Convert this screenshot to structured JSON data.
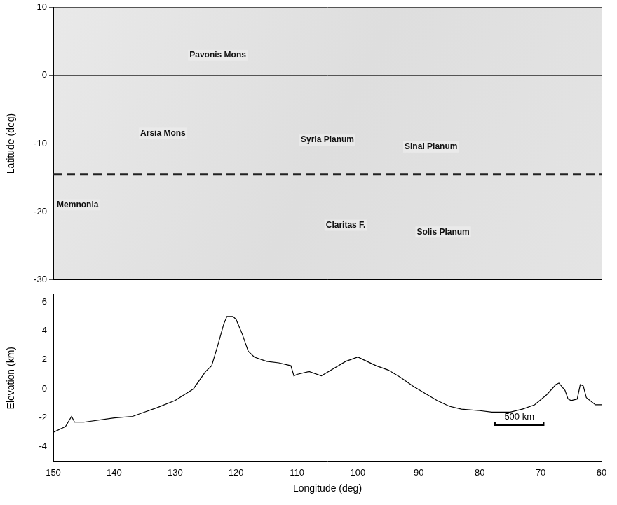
{
  "chart_data": [
    {
      "type": "map",
      "ylabel": "Latitude (deg)",
      "xlim": [
        150,
        60
      ],
      "ylim": [
        -30,
        10
      ],
      "xticks": [
        150,
        140,
        130,
        120,
        110,
        100,
        90,
        80,
        70,
        60
      ],
      "yticks": [
        -30,
        -20,
        -10,
        0,
        10
      ],
      "grid": true,
      "tick_labels": "y",
      "annotations": [
        {
          "text": "Pavonis Mons",
          "x": 123,
          "y": 3
        },
        {
          "text": "Arsia Mons",
          "x": 132,
          "y": -8.5
        },
        {
          "text": "Syria Planum",
          "x": 105,
          "y": -9.5
        },
        {
          "text": "Sinai Planum",
          "x": 88,
          "y": -10.5
        },
        {
          "text": "Memnonia",
          "x": 146,
          "y": -19
        },
        {
          "text": "Claritas F.",
          "x": 102,
          "y": -22
        },
        {
          "text": "Solis Planum",
          "x": 86,
          "y": -23
        }
      ],
      "profile_line": {
        "y": -14.5,
        "line_style": "dashed",
        "color": "#222222"
      }
    },
    {
      "type": "line",
      "xlabel": "Longitude (deg)",
      "ylabel": "Elevation (km)",
      "color": "#000000",
      "x": [
        150,
        148,
        147,
        146.5,
        145,
        140,
        137,
        135,
        133,
        130,
        127,
        125,
        124,
        123,
        122,
        121.5,
        120.5,
        120,
        119,
        118,
        117,
        115,
        113,
        111,
        110.5,
        110,
        108,
        106,
        104,
        102,
        100,
        99,
        97,
        95,
        93,
        91,
        89,
        87,
        85,
        83,
        80,
        78,
        75,
        73,
        71,
        69,
        67.5,
        67,
        66,
        65.5,
        65,
        64,
        63.5,
        63,
        62.5,
        61,
        60
      ],
      "values": [
        -3.0,
        -2.6,
        -1.9,
        -2.3,
        -2.3,
        -2.0,
        -1.9,
        -1.6,
        -1.3,
        -0.8,
        0.0,
        1.2,
        1.6,
        3.0,
        4.5,
        5.0,
        5.0,
        4.8,
        3.8,
        2.6,
        2.2,
        1.9,
        1.8,
        1.6,
        0.9,
        1.0,
        1.2,
        0.9,
        1.4,
        1.9,
        2.2,
        2.0,
        1.6,
        1.3,
        0.8,
        0.2,
        -0.3,
        -0.8,
        -1.2,
        -1.4,
        -1.5,
        -1.6,
        -1.6,
        -1.4,
        -1.1,
        -0.4,
        0.3,
        0.4,
        -0.1,
        -0.7,
        -0.8,
        -0.7,
        0.3,
        0.2,
        -0.6,
        -1.1,
        -1.1
      ],
      "xlim": [
        150,
        60
      ],
      "ylim": [
        -5,
        6.5
      ],
      "xticks": [
        150,
        140,
        130,
        120,
        110,
        100,
        90,
        80,
        70,
        60
      ],
      "yticks": [
        -4,
        -2,
        0,
        2,
        4,
        6
      ],
      "grid": false,
      "scale_bar": {
        "text": "500 km",
        "x": [
          77.5,
          69.5
        ],
        "y": -2.5
      }
    }
  ]
}
